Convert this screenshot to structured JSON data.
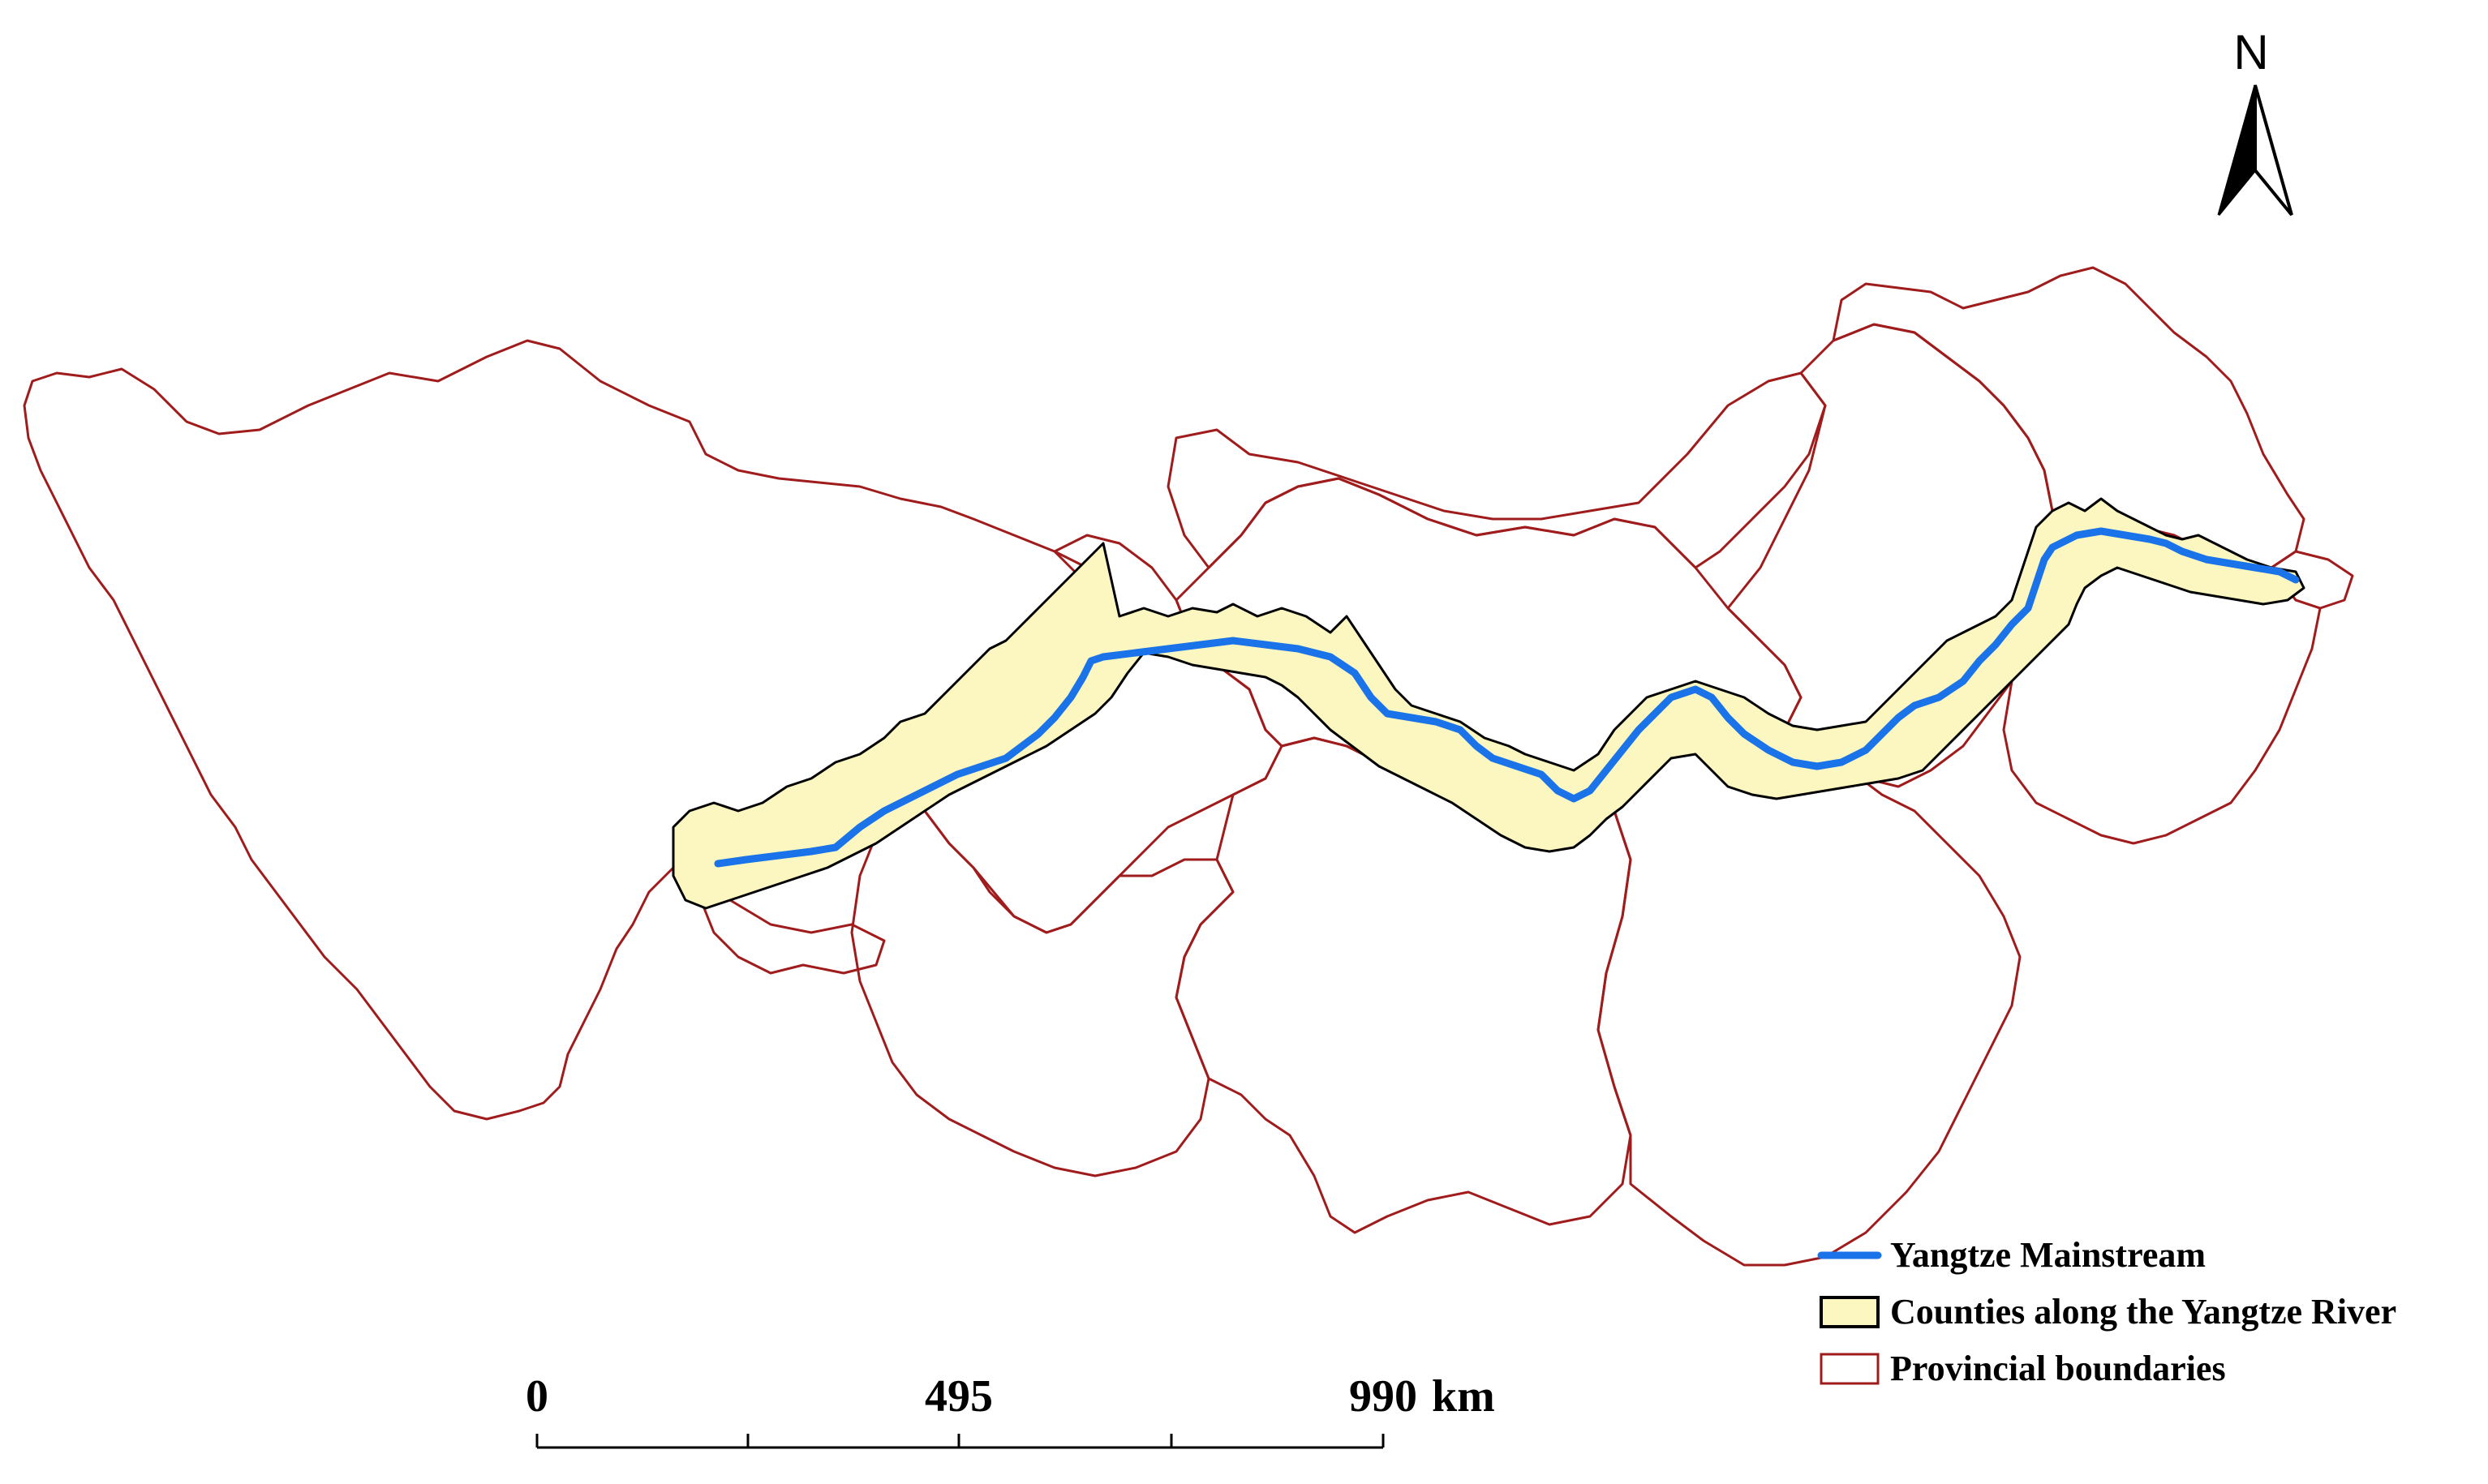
{
  "north_arrow": {
    "label": "N",
    "icon": "north-arrow-icon"
  },
  "legend": {
    "items": [
      {
        "label": "Yangtze Mainstream",
        "symbol": "line",
        "color": "#1a73e8"
      },
      {
        "label": "Counties along the Yangtze River",
        "symbol": "filled-box",
        "fill": "#fcf7c0",
        "stroke": "#000000"
      },
      {
        "label": "Provincial boundaries",
        "symbol": "outline-box",
        "stroke": "#a01c1c"
      }
    ]
  },
  "scale_bar": {
    "ticks": [
      "0",
      "495",
      "990"
    ],
    "unit": "km"
  },
  "colors": {
    "river": "#1a73e8",
    "county_fill": "#fcf7c0",
    "county_stroke": "#000000",
    "province_stroke": "#a01c1c"
  }
}
